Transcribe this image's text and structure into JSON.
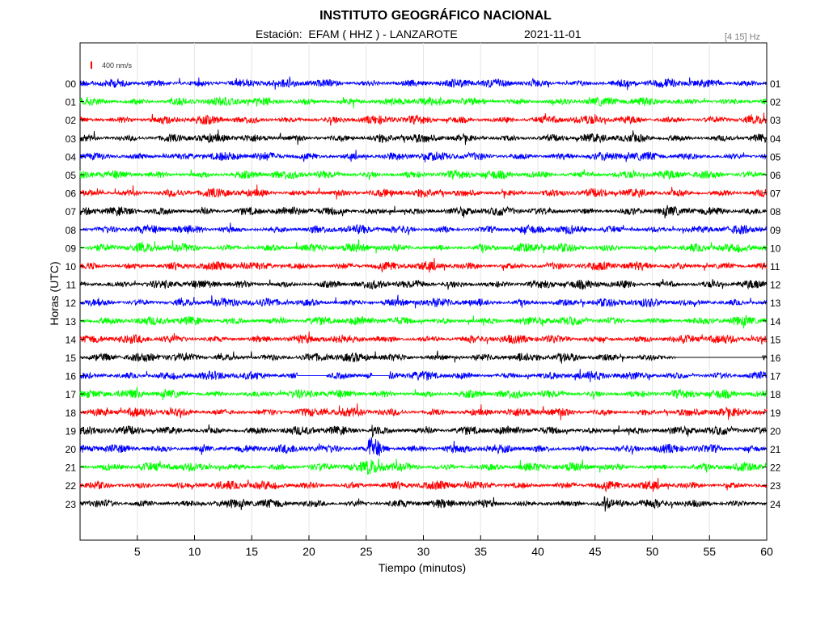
{
  "header": {
    "title": "INSTITUTO GEOGRÁFICO NACIONAL",
    "station_line": "Estación:  EFAM ( HHZ ) - LANZAROTE",
    "date": "2021-11-01",
    "filter_band": "[4 15] Hz"
  },
  "chart_data": {
    "type": "line",
    "title": "INSTITUTO GEOGRÁFICO NACIONAL",
    "xlabel": "Tiempo (minutos)",
    "ylabel": "Horas (UTC)",
    "xlim": [
      0,
      60
    ],
    "x_ticks": [
      "5",
      "10",
      "15",
      "20",
      "25",
      "30",
      "35",
      "40",
      "45",
      "50",
      "55",
      "60"
    ],
    "scale_label": "400 nm/s",
    "scale_color": "#ff0000",
    "grid": true,
    "series_colors": [
      "#0000ff",
      "#00ff00",
      "#ff0000",
      "#000000"
    ],
    "left_labels": [
      "00",
      "01",
      "02",
      "03",
      "04",
      "05",
      "06",
      "07",
      "08",
      "09",
      "10",
      "11",
      "12",
      "13",
      "14",
      "15",
      "16",
      "17",
      "18",
      "19",
      "20",
      "21",
      "22",
      "23"
    ],
    "right_labels": [
      "01",
      "02",
      "03",
      "04",
      "05",
      "06",
      "07",
      "08",
      "09",
      "10",
      "11",
      "12",
      "13",
      "14",
      "15",
      "16",
      "17",
      "18",
      "19",
      "20",
      "21",
      "22",
      "23",
      "24"
    ],
    "events": [
      {
        "hour": 20,
        "minute_start": 25.2,
        "minute_end": 27.0,
        "amplitude": "large"
      },
      {
        "hour": 21,
        "minute_start": 25.0,
        "minute_end": 27.5,
        "amplitude": "moderate"
      },
      {
        "hour": 23,
        "minute_start": 45.8,
        "minute_end": 46.4,
        "amplitude": "moderate"
      },
      {
        "hour": 19,
        "minute_start": 25.5,
        "minute_end": 26.2,
        "amplitude": "moderate"
      }
    ],
    "gaps": [
      {
        "hour": 15,
        "minute_start": 52.0,
        "minute_end": 59.6
      },
      {
        "hour": 16,
        "minute_start": 19.0,
        "minute_end": 21.5
      },
      {
        "hour": 16,
        "minute_start": 25.5,
        "minute_end": 27.0
      }
    ]
  }
}
